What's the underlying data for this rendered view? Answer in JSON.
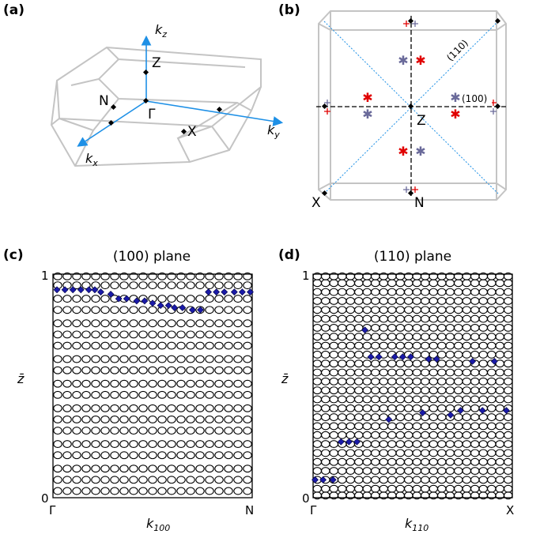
{
  "panel_labels": {
    "a": "(a)",
    "b": "(b)",
    "c": "(c)",
    "d": "(d)"
  },
  "panel_a": {
    "axis_kz": "k",
    "axis_kz_sub": "z",
    "axis_ky": "k",
    "axis_ky_sub": "y",
    "axis_kx": "k",
    "axis_kx_sub": "x",
    "points": {
      "Z": "Z",
      "N": "N",
      "Gamma": "Γ",
      "X": "X"
    }
  },
  "panel_b": {
    "points": {
      "Z": "Z",
      "X": "X",
      "N": "N"
    },
    "dir_110": "(110)",
    "dir_100": "(100)"
  },
  "chart_data": [
    {
      "type": "scatter",
      "title": "(100) plane",
      "xlabel": "k",
      "xlabel_sub": "100",
      "ylabel": "z̄",
      "xticklabels": [
        "Γ",
        "N"
      ],
      "yticklabels": [
        "0",
        "1"
      ],
      "ylim": [
        0,
        1
      ],
      "xlim": [
        0,
        1
      ],
      "series": [
        {
          "marker": "open-circle",
          "description_note": "",
          "x_columns": 21,
          "y_levels": [
            0.03,
            0.08,
            0.13,
            0.19,
            0.24,
            0.3,
            0.35,
            0.4,
            0.46,
            0.51,
            0.57,
            0.62,
            0.68,
            0.73,
            0.78,
            0.84,
            0.89,
            0.95,
            0.99
          ]
        },
        {
          "marker": "blue-diamond",
          "x": [
            0.02,
            0.06,
            0.1,
            0.14,
            0.18,
            0.21,
            0.24,
            0.29,
            0.33,
            0.37,
            0.42,
            0.46,
            0.5,
            0.54,
            0.58,
            0.61,
            0.65,
            0.7,
            0.74,
            0.78,
            0.82,
            0.86,
            0.91,
            0.95,
            0.99
          ],
          "y": [
            0.93,
            0.93,
            0.93,
            0.93,
            0.93,
            0.93,
            0.92,
            0.91,
            0.89,
            0.89,
            0.88,
            0.88,
            0.87,
            0.86,
            0.86,
            0.85,
            0.85,
            0.84,
            0.84,
            0.92,
            0.92,
            0.92,
            0.92,
            0.92,
            0.92
          ]
        }
      ]
    },
    {
      "type": "scatter",
      "title": "(110) plane",
      "xlabel": "k",
      "xlabel_sub": "110",
      "ylabel": "z̄",
      "xticklabels": [
        "Γ",
        "X"
      ],
      "yticklabels": [
        "0",
        "1"
      ],
      "ylim": [
        0,
        1
      ],
      "xlim": [
        0,
        1
      ],
      "series": [
        {
          "marker": "open-circle",
          "x_columns": 24,
          "y_levels": [
            0.01,
            0.04,
            0.08,
            0.12,
            0.16,
            0.2,
            0.24,
            0.28,
            0.32,
            0.36,
            0.4,
            0.44,
            0.48,
            0.52,
            0.56,
            0.6,
            0.64,
            0.68,
            0.72,
            0.76,
            0.8,
            0.84,
            0.88,
            0.92,
            0.96,
            0.99
          ]
        },
        {
          "marker": "blue-diamond",
          "x": [
            0.01,
            0.05,
            0.1,
            0.14,
            0.18,
            0.22,
            0.26,
            0.29,
            0.33,
            0.38,
            0.41,
            0.45,
            0.49,
            0.55,
            0.58,
            0.62,
            0.69,
            0.74,
            0.8,
            0.85,
            0.91,
            0.97
          ],
          "y": [
            0.08,
            0.08,
            0.08,
            0.25,
            0.25,
            0.25,
            0.75,
            0.63,
            0.63,
            0.35,
            0.63,
            0.63,
            0.63,
            0.38,
            0.62,
            0.62,
            0.37,
            0.39,
            0.61,
            0.39,
            0.61,
            0.39
          ]
        }
      ]
    }
  ]
}
